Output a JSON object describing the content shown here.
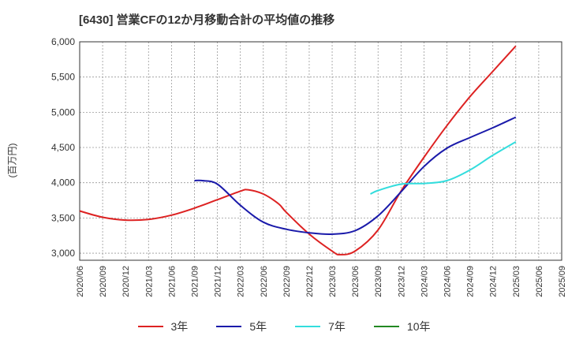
{
  "chart_data": {
    "type": "line",
    "title": "[6430]  営業CFの12か月移動合計の平均値の推移",
    "ylabel": "(百万円)",
    "xlabel": "",
    "ylim": [
      2900,
      6000
    ],
    "yticks": [
      "3,000",
      "3,500",
      "4,000",
      "4,500",
      "5,000",
      "5,500",
      "6,000"
    ],
    "ytick_values": [
      3000,
      3500,
      4000,
      4500,
      5000,
      5500,
      6000
    ],
    "xticks": [
      "2020/06",
      "2020/09",
      "2020/12",
      "2021/03",
      "2021/06",
      "2021/09",
      "2021/12",
      "2022/03",
      "2022/06",
      "2022/09",
      "2022/12",
      "2023/03",
      "2023/06",
      "2023/09",
      "2023/12",
      "2024/03",
      "2024/06",
      "2024/09",
      "2024/12",
      "2025/03",
      "2025/06",
      "2025/09"
    ],
    "grid": true,
    "legend_position": "bottom",
    "series": [
      {
        "name": "3年",
        "color": "#dd2222",
        "points": [
          [
            "2020/06",
            3600
          ],
          [
            "2020/09",
            3510
          ],
          [
            "2020/12",
            3470
          ],
          [
            "2021/03",
            3480
          ],
          [
            "2021/06",
            3540
          ],
          [
            "2021/09",
            3640
          ],
          [
            "2021/12",
            3760
          ],
          [
            "2022/03",
            3880
          ],
          [
            "2022/04",
            3900
          ],
          [
            "2022/06",
            3840
          ],
          [
            "2022/08",
            3700
          ],
          [
            "2022/09",
            3580
          ],
          [
            "2022/12",
            3270
          ],
          [
            "2023/03",
            3030
          ],
          [
            "2023/04",
            2980
          ],
          [
            "2023/06",
            3030
          ],
          [
            "2023/09",
            3330
          ],
          [
            "2023/12",
            3880
          ],
          [
            "2024/03",
            4360
          ],
          [
            "2024/06",
            4810
          ],
          [
            "2024/09",
            5220
          ],
          [
            "2024/12",
            5580
          ],
          [
            "2025/03",
            5940
          ]
        ]
      },
      {
        "name": "5年",
        "color": "#1a1aaa",
        "points": [
          [
            "2021/09",
            4030
          ],
          [
            "2021/10",
            4030
          ],
          [
            "2021/12",
            3980
          ],
          [
            "2022/03",
            3680
          ],
          [
            "2022/06",
            3440
          ],
          [
            "2022/09",
            3340
          ],
          [
            "2022/12",
            3290
          ],
          [
            "2023/03",
            3270
          ],
          [
            "2023/06",
            3320
          ],
          [
            "2023/09",
            3530
          ],
          [
            "2023/12",
            3870
          ],
          [
            "2024/03",
            4230
          ],
          [
            "2024/06",
            4490
          ],
          [
            "2024/09",
            4640
          ],
          [
            "2024/12",
            4780
          ],
          [
            "2025/03",
            4930
          ]
        ]
      },
      {
        "name": "7年",
        "color": "#33dddd",
        "points": [
          [
            "2023/08",
            3840
          ],
          [
            "2023/09",
            3890
          ],
          [
            "2023/12",
            3980
          ],
          [
            "2024/03",
            3990
          ],
          [
            "2024/06",
            4030
          ],
          [
            "2024/09",
            4180
          ],
          [
            "2024/12",
            4390
          ],
          [
            "2025/03",
            4580
          ]
        ]
      },
      {
        "name": "10年",
        "color": "#228822",
        "points": []
      }
    ]
  }
}
